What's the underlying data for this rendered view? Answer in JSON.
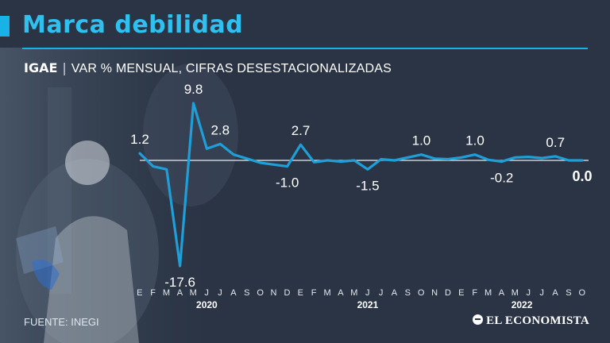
{
  "header": {
    "title": "Marca debilidad",
    "subtitle_strong": "IGAE",
    "subtitle_sep": "|",
    "subtitle_rest": "VAR % MENSUAL, CIFRAS DESESTACIONALIZADAS"
  },
  "footer": {
    "source": "FUENTE: INEGI",
    "brand": "EL ECONOMISTA"
  },
  "colors": {
    "line": "#1e9fd8",
    "accent": "#19b2e6",
    "background": "#2a3444"
  },
  "chart_data": {
    "type": "line",
    "title": "",
    "xlabel": "",
    "ylabel": "",
    "month_labels": [
      "E",
      "F",
      "M",
      "A",
      "M",
      "J",
      "J",
      "A",
      "S",
      "O",
      "N",
      "D",
      "E",
      "F",
      "M",
      "A",
      "M",
      "J",
      "J",
      "A",
      "S",
      "O",
      "N",
      "D",
      "E",
      "F",
      "M",
      "A",
      "M",
      "J",
      "J",
      "A",
      "S",
      "O"
    ],
    "years": [
      {
        "label": "2020",
        "index": 5
      },
      {
        "label": "2021",
        "index": 17
      },
      {
        "label": "2022",
        "index": 28.5
      }
    ],
    "values": [
      1.2,
      -1.0,
      -1.5,
      -17.6,
      9.8,
      2.0,
      2.8,
      1.0,
      0.3,
      -0.4,
      -0.7,
      -1.0,
      2.7,
      -0.3,
      0.0,
      -0.2,
      0.0,
      -1.5,
      0.2,
      0.0,
      0.5,
      1.0,
      0.3,
      0.2,
      0.5,
      1.0,
      0.1,
      -0.2,
      0.5,
      0.6,
      0.4,
      0.7,
      0.0,
      0.0
    ],
    "point_labels": [
      {
        "index": 0,
        "text": "1.2",
        "pos": "above"
      },
      {
        "index": 3,
        "text": "-17.6",
        "pos": "below"
      },
      {
        "index": 4,
        "text": "9.8",
        "pos": "above"
      },
      {
        "index": 6,
        "text": "2.8",
        "pos": "above"
      },
      {
        "index": 11,
        "text": "-1.0",
        "pos": "below"
      },
      {
        "index": 12,
        "text": "2.7",
        "pos": "above"
      },
      {
        "index": 17,
        "text": "-1.5",
        "pos": "below"
      },
      {
        "index": 21,
        "text": "1.0",
        "pos": "above"
      },
      {
        "index": 25,
        "text": "1.0",
        "pos": "above"
      },
      {
        "index": 27,
        "text": "-0.2",
        "pos": "below"
      },
      {
        "index": 31,
        "text": "0.7",
        "pos": "above"
      },
      {
        "index": 33,
        "text": "0.0",
        "pos": "below",
        "bold": true
      }
    ],
    "zero_line": true,
    "grid": false,
    "legend": "none"
  }
}
